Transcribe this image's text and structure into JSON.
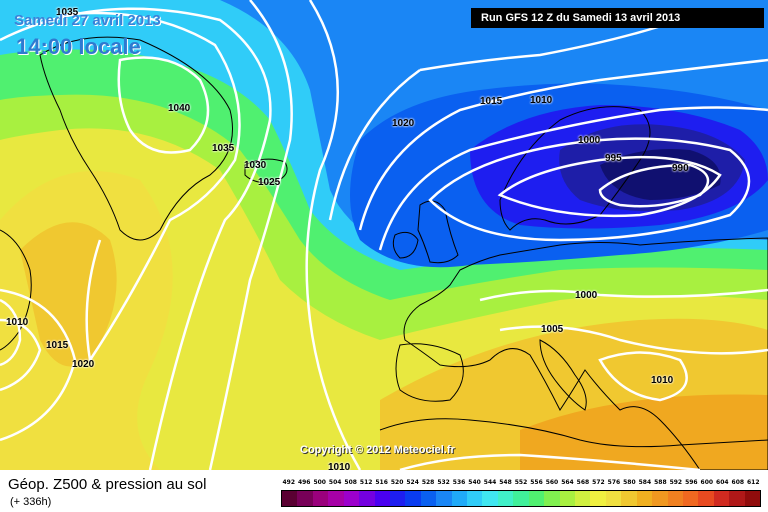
{
  "header": {
    "date": "Samedi 27 avril 2013",
    "time": "14:00 locale",
    "run": "Run GFS 12 Z du Samedi 13 avril 2013"
  },
  "copyright": "Copyright © 2012 Meteociel.fr",
  "footer": {
    "title": "Géop. Z500 & pression au sol",
    "subtitle": "(+ 336h)"
  },
  "isobar_labels": [
    "1035",
    "1040",
    "1035",
    "1030",
    "1025",
    "1020",
    "1015",
    "1010",
    "1000",
    "995",
    "990",
    "1000",
    "1005",
    "1010",
    "1010",
    "1015",
    "1020",
    "1010"
  ],
  "legend": {
    "labels": [
      "492",
      "496",
      "500",
      "504",
      "508",
      "512",
      "516",
      "520",
      "524",
      "528",
      "532",
      "536",
      "540",
      "544",
      "548",
      "552",
      "556",
      "560",
      "564",
      "568",
      "572",
      "576",
      "580",
      "584",
      "588",
      "592",
      "596",
      "600",
      "604",
      "608",
      "612"
    ],
    "colors": [
      "#5a0032",
      "#780058",
      "#9a007c",
      "#a600a6",
      "#9c00cc",
      "#7400e0",
      "#4a00f0",
      "#1e1ef0",
      "#0a3cf0",
      "#0a60f0",
      "#1a86f5",
      "#20aaf8",
      "#30ccf8",
      "#40e6f0",
      "#40f0c8",
      "#40f09a",
      "#50f070",
      "#80f050",
      "#a8f040",
      "#d0f040",
      "#f0f040",
      "#f0e040",
      "#f0c830",
      "#f0b020",
      "#f09820",
      "#f08020",
      "#f06820",
      "#e84a20",
      "#d02a20",
      "#b01818",
      "#900c0c"
    ]
  }
}
